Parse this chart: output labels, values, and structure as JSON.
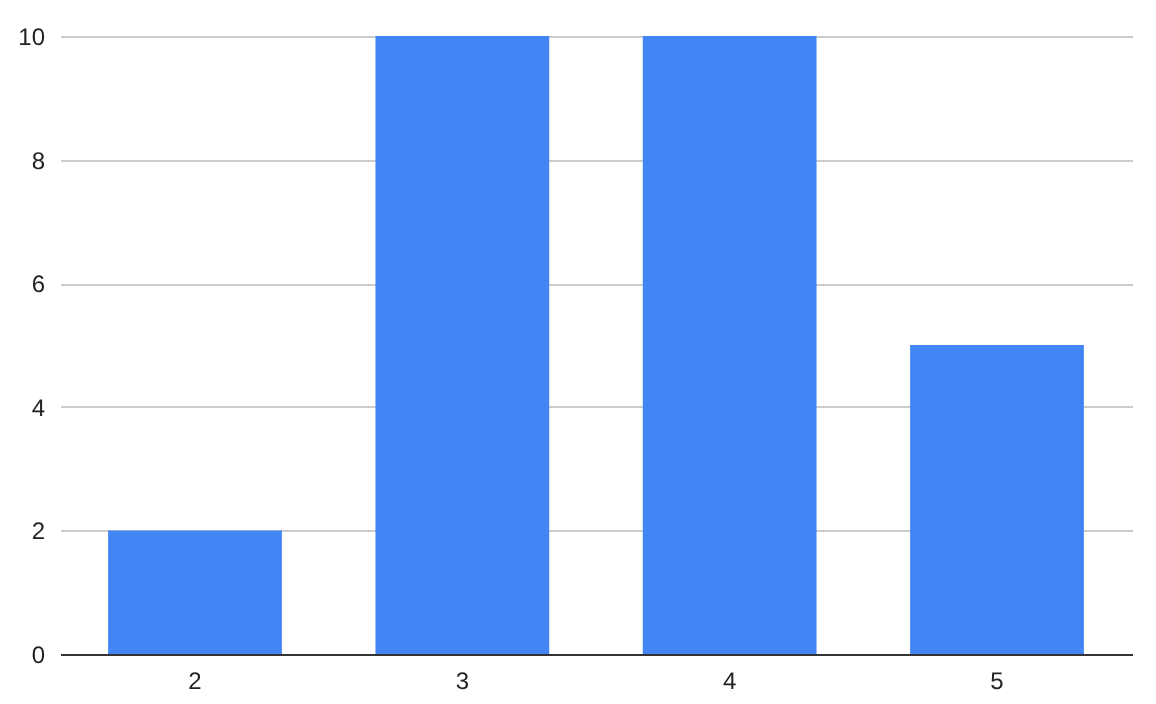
{
  "chart_data": {
    "type": "bar",
    "categories": [
      "2",
      "3",
      "4",
      "5"
    ],
    "values": [
      2,
      10,
      10,
      5
    ],
    "color": "#4285f4",
    "ylim": [
      0,
      10
    ],
    "yticks": [
      0,
      2,
      4,
      6,
      8,
      10
    ],
    "grid": "y"
  }
}
